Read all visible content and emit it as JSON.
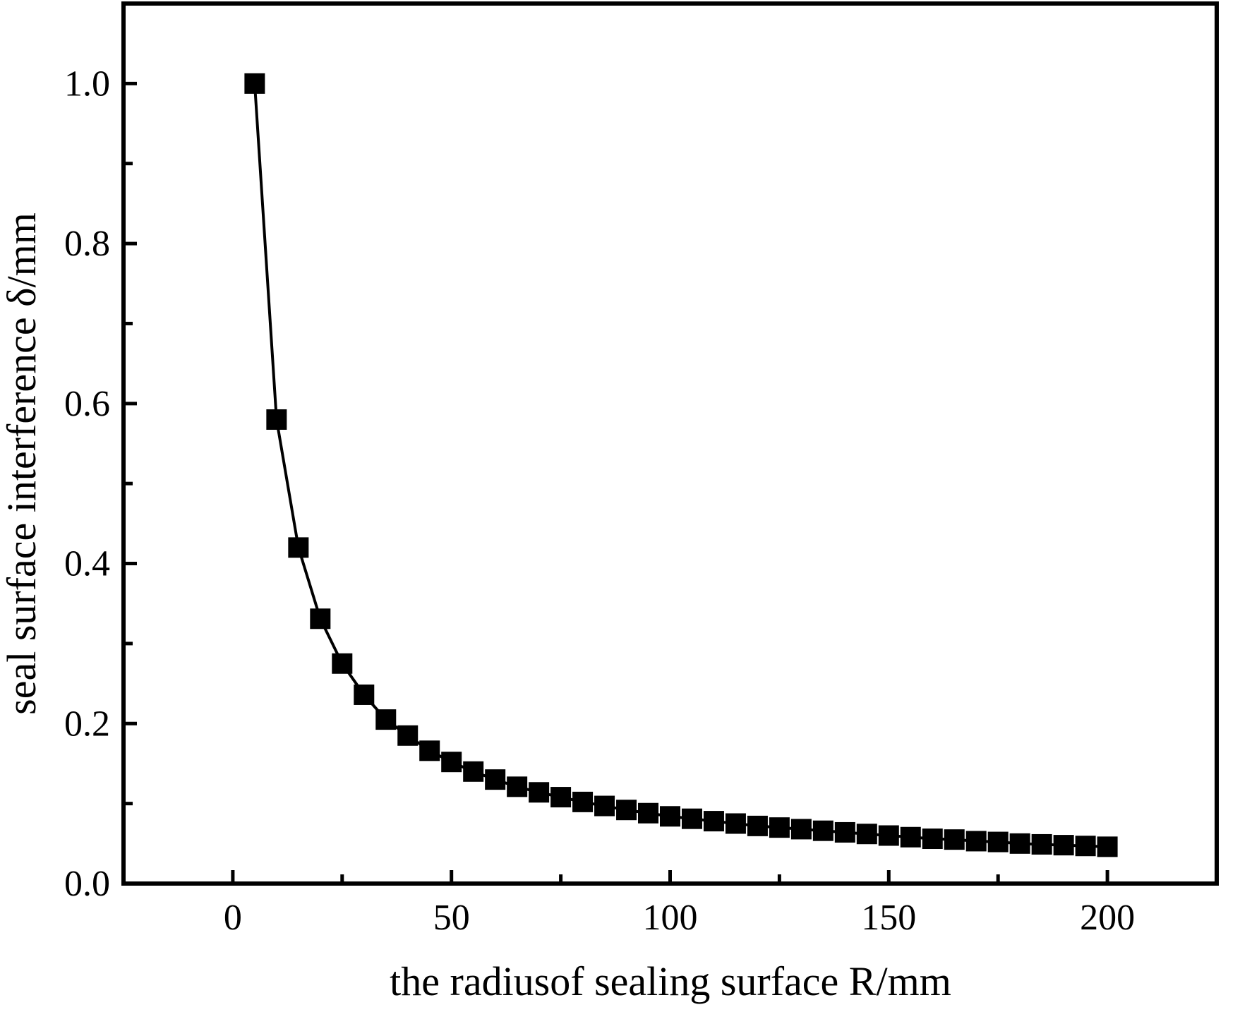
{
  "figure": {
    "background": "#ffffff",
    "foreground": "#000000"
  },
  "chart_data": {
    "type": "line",
    "title": "",
    "xlabel": "the radiusof sealing surface R/mm",
    "ylabel": "seal surface interference δ/mm",
    "x": [
      5,
      10,
      15,
      20,
      25,
      30,
      35,
      40,
      45,
      50,
      55,
      60,
      65,
      70,
      75,
      80,
      85,
      90,
      95,
      100,
      105,
      110,
      115,
      120,
      125,
      130,
      135,
      140,
      145,
      150,
      155,
      160,
      165,
      170,
      175,
      180,
      185,
      190,
      195,
      200
    ],
    "y": [
      1.0,
      0.58,
      0.42,
      0.331,
      0.275,
      0.236,
      0.205,
      0.185,
      0.166,
      0.152,
      0.14,
      0.13,
      0.121,
      0.114,
      0.108,
      0.102,
      0.097,
      0.092,
      0.088,
      0.084,
      0.081,
      0.078,
      0.075,
      0.072,
      0.07,
      0.068,
      0.066,
      0.064,
      0.062,
      0.06,
      0.058,
      0.056,
      0.055,
      0.053,
      0.052,
      0.05,
      0.049,
      0.048,
      0.047,
      0.046
    ],
    "series_name": "seal surface interference vs sealing surface radius",
    "marker": "filled-square",
    "marker_color": "#000000",
    "line_color": "#000000",
    "axis_color": "#000000",
    "background": "#ffffff",
    "grid": false,
    "legend": null,
    "xlim": [
      -25,
      225
    ],
    "ylim": [
      0,
      1.1
    ],
    "xticks_major": [
      0,
      50,
      100,
      150,
      200
    ],
    "xtick_labels": [
      "0",
      "50",
      "100",
      "150",
      "200"
    ],
    "xticks_minor": [
      25,
      75,
      125,
      175
    ],
    "yticks_major": [
      0,
      0.2,
      0.4,
      0.6,
      0.8,
      1.0
    ],
    "ytick_labels": [
      "0.0",
      "0.2",
      "0.4",
      "0.6",
      "0.8",
      "1.0"
    ],
    "yticks_minor": [
      0.1,
      0.3,
      0.5,
      0.7,
      0.9
    ]
  }
}
